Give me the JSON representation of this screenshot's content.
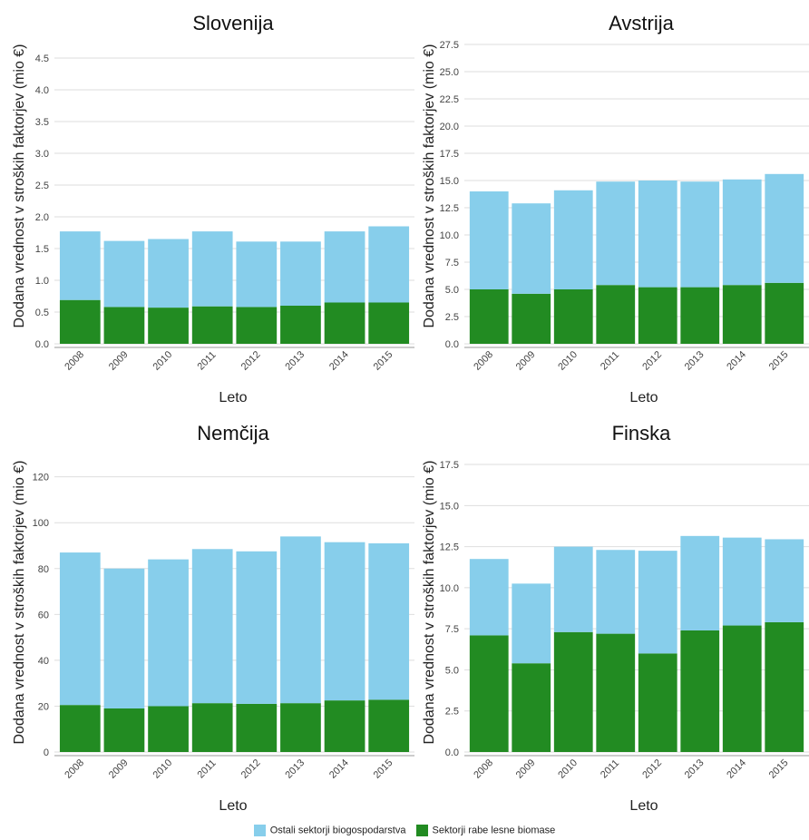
{
  "colors": {
    "ostali": "#87ceeb",
    "lesna": "#228b22"
  },
  "legend": {
    "items": [
      {
        "key": "ostali",
        "label": "Ostali sektorji biogospodarstva"
      },
      {
        "key": "lesna",
        "label": "Sektorji rabe lesne biomase"
      }
    ]
  },
  "chart_data": [
    {
      "type": "bar",
      "stacked": true,
      "title": "Slovenija",
      "xlabel": "Leto",
      "ylabel": "Dodana vrednost v stroških faktorjev (mio €)",
      "categories": [
        "2008",
        "2009",
        "2010",
        "2011",
        "2012",
        "2013",
        "2014",
        "2015"
      ],
      "ylim": [
        0,
        4.6
      ],
      "yticks": [
        "0.0",
        "0.5",
        "1.0",
        "1.5",
        "2.0",
        "2.5",
        "3.0",
        "3.5",
        "4.0",
        "4.5"
      ],
      "grid": true,
      "legend": "bottom",
      "series": [
        {
          "name": "Sektorji rabe lesne biomase",
          "key": "lesna",
          "values": [
            0.69,
            0.58,
            0.57,
            0.59,
            0.58,
            0.6,
            0.65,
            0.65
          ]
        },
        {
          "name": "Ostali sektorji biogospodarstva",
          "key": "ostali",
          "values": [
            1.08,
            1.04,
            1.08,
            1.18,
            1.03,
            1.01,
            1.12,
            1.2
          ]
        }
      ]
    },
    {
      "type": "bar",
      "stacked": true,
      "title": "Avstrija",
      "xlabel": "Leto",
      "ylabel": "Dodana vrednost v stroških faktorjev (mio €)",
      "categories": [
        "2008",
        "2009",
        "2010",
        "2011",
        "2012",
        "2013",
        "2014",
        "2015"
      ],
      "ylim": [
        0,
        28.0
      ],
      "yticks": [
        "0.0",
        "2.5",
        "5.0",
        "7.5",
        "10.0",
        "12.5",
        "15.0",
        "17.5",
        "20.0",
        "22.5",
        "25.0",
        "27.5"
      ],
      "grid": true,
      "legend": "bottom",
      "series": [
        {
          "name": "Sektorji rabe lesne biomase",
          "key": "lesna",
          "values": [
            5.0,
            4.6,
            5.0,
            5.4,
            5.2,
            5.2,
            5.4,
            5.6
          ]
        },
        {
          "name": "Ostali sektorji biogospodarstva",
          "key": "ostali",
          "values": [
            9.0,
            8.3,
            9.1,
            9.5,
            9.8,
            9.7,
            9.7,
            10.0
          ]
        }
      ]
    },
    {
      "type": "bar",
      "stacked": true,
      "title": "Nemčija",
      "xlabel": "Leto",
      "ylabel": "Dodana vrednost v stroških faktorjev (mio €)",
      "categories": [
        "2008",
        "2009",
        "2010",
        "2011",
        "2012",
        "2013",
        "2014",
        "2015"
      ],
      "ylim": [
        0,
        125
      ],
      "yticks": [
        "0",
        "20",
        "40",
        "60",
        "80",
        "100",
        "120"
      ],
      "grid": true,
      "legend": "bottom",
      "series": [
        {
          "name": "Sektorji rabe lesne biomase",
          "key": "lesna",
          "values": [
            20.5,
            19.0,
            20.0,
            21.3,
            21.0,
            21.3,
            22.5,
            22.8
          ]
        },
        {
          "name": "Ostali sektorji biogospodarstva",
          "key": "ostali",
          "values": [
            66.5,
            61.0,
            64.0,
            67.2,
            66.5,
            72.7,
            69.0,
            68.2
          ]
        }
      ]
    },
    {
      "type": "bar",
      "stacked": true,
      "title": "Finska",
      "xlabel": "Leto",
      "ylabel": "Dodana vrednost v stroških faktorjev (mio €)",
      "categories": [
        "2008",
        "2009",
        "2010",
        "2011",
        "2012",
        "2013",
        "2014",
        "2015"
      ],
      "ylim": [
        0,
        18.0
      ],
      "yticks": [
        "0.0",
        "2.5",
        "5.0",
        "7.5",
        "10.0",
        "12.5",
        "15.0",
        "17.5"
      ],
      "grid": true,
      "legend": "bottom",
      "series": [
        {
          "name": "Sektorji rabe lesne biomase",
          "key": "lesna",
          "values": [
            7.1,
            5.4,
            7.3,
            7.2,
            6.0,
            7.4,
            7.7,
            7.9
          ]
        },
        {
          "name": "Ostali sektorji biogospodarstva",
          "key": "ostali",
          "values": [
            4.65,
            4.85,
            5.2,
            5.1,
            6.25,
            5.75,
            5.35,
            5.05
          ]
        }
      ]
    }
  ]
}
